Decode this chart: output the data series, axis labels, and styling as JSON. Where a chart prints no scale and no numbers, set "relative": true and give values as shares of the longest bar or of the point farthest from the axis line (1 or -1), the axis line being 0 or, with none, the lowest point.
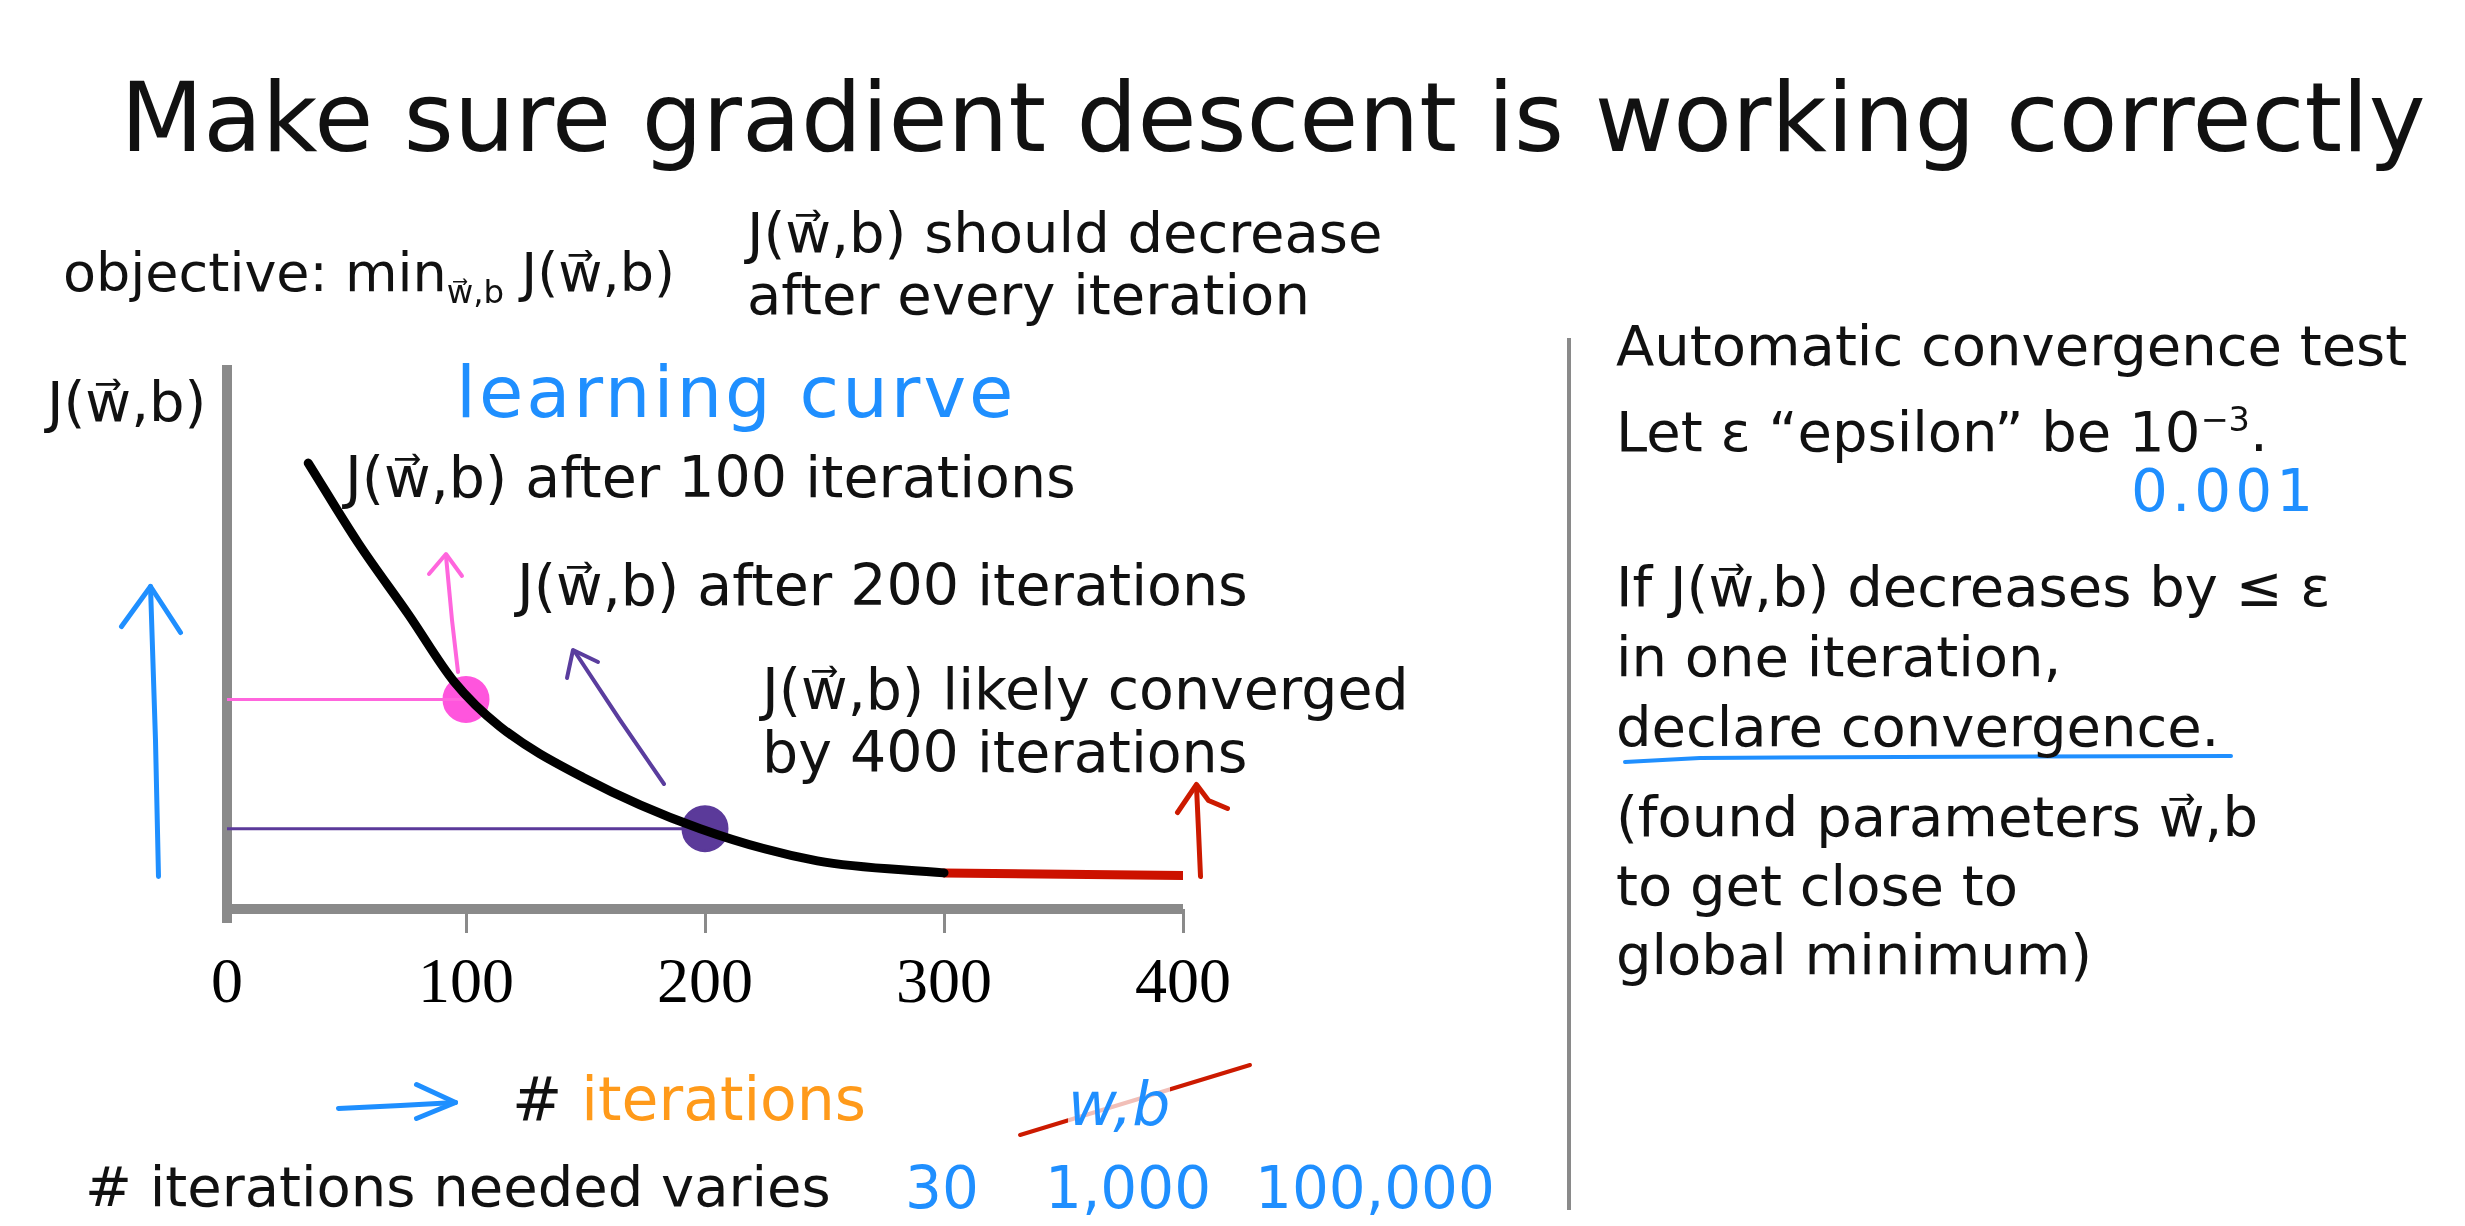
{
  "chart_data": {
    "type": "line",
    "title": "Make sure gradient descent is working correctly",
    "xlabel": "# iterations",
    "ylabel": "J(w⃗,b)",
    "xlim": [
      0,
      400
    ],
    "xticks": [
      0,
      100,
      200,
      300,
      400
    ],
    "relative": true,
    "legend": false,
    "series": [
      {
        "color": "#000000",
        "x": [
          34,
          55,
          76,
          95,
          114,
          149,
          198,
          247,
          300
        ],
        "values": [
          1.0,
          0.82,
          0.66,
          0.51,
          0.41,
          0.295,
          0.18,
          0.108,
          0.081
        ]
      },
      {
        "color": "#cc1100",
        "x": [
          300,
          400
        ],
        "values": [
          0.081,
          0.075
        ]
      },
      {
        "color": "#ff66dd",
        "x": [
          0,
          100
        ],
        "values": [
          0.47,
          0.47
        ]
      },
      {
        "type": "scatter",
        "color": "#ff55dd",
        "x": [
          100
        ],
        "values": [
          0.47
        ]
      },
      {
        "color": "#5b3a9a",
        "x": [
          0,
          200
        ],
        "values": [
          0.18,
          0.18
        ]
      },
      {
        "type": "scatter",
        "color": "#5b3a9a",
        "x": [
          200
        ],
        "values": [
          0.18
        ]
      }
    ],
    "annotations": [
      "objective: min$_{w⃗,b}$ J(w⃗,b)",
      "J(w⃗,b) should decrease\nafter every iteration",
      "learning curve",
      "J(w⃗,b) after 100 iterations",
      "J(w⃗,b) after 200 iterations",
      {
        "text": "J(w⃗,b) likely converged\nby 400 iterations",
        "x": 400,
        "y": 0.075
      },
      "w,b",
      "# iterations needed varies",
      "30",
      "1,000",
      "100,000",
      "Automatic convergence test",
      "Let ε “epsilon” be 10$^{−3}$.",
      "0.001",
      "If J(w⃗,b) decreases by ≤ ε\nin one iteration,\ndeclare convergence.",
      "(found parameters w⃗,b\nto get close to\nglobal minimum)"
    ]
  }
}
